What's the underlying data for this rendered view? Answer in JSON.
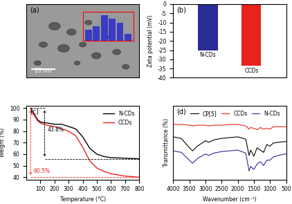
{
  "chart_data": [
    {
      "type": "image",
      "title": "(a)",
      "scale_bar": "20 nm",
      "inset": {
        "type": "bar",
        "values": [
          3,
          4,
          7,
          6,
          5,
          2
        ],
        "color": "#3b3bc4",
        "ylim": [
          0,
          8
        ],
        "tick_labels": false
      }
    },
    {
      "type": "bar",
      "title": "(b)",
      "categories": [
        "N-CDs",
        "CCDs"
      ],
      "values": [
        -25,
        -33.5
      ],
      "colors": [
        "#2b2b96",
        "#e8231c"
      ],
      "y_label": "Zeta potential (mV)",
      "ylim": [
        -40,
        0
      ],
      "yticks": [
        0,
        -5,
        -10,
        -15,
        -20,
        -25,
        -30,
        -35,
        -40
      ]
    },
    {
      "type": "line",
      "title": "(c)",
      "x_label": "Temperature (°C)",
      "y_label": "Weight (%)",
      "x": [
        30,
        50,
        80,
        100,
        150,
        200,
        250,
        300,
        350,
        400,
        450,
        500,
        550,
        600,
        700,
        800
      ],
      "series": [
        {
          "name": "N-CDs",
          "color": "#000000",
          "values": [
            100,
            96,
            90,
            88,
            87,
            86,
            86,
            84,
            82,
            75,
            65,
            60,
            58,
            57,
            56.5,
            56
          ]
        },
        {
          "name": "CCDs",
          "color": "#e8231c",
          "values": [
            100,
            95,
            89,
            87,
            85,
            84,
            82,
            80,
            76,
            66,
            54,
            48,
            45,
            43,
            41,
            40
          ]
        }
      ],
      "xlim": [
        0,
        800
      ],
      "xticks": [
        100,
        200,
        300,
        400,
        500,
        600,
        700,
        800
      ],
      "ylim": [
        38,
        102
      ],
      "yticks": [
        40,
        50,
        60,
        70,
        80,
        90,
        100
      ],
      "legend": "upper right",
      "annotations": [
        "43.8%",
        "60.5%"
      ]
    },
    {
      "type": "line",
      "title": "(d)",
      "x_label": "Wavenumber (cm⁻¹)",
      "y_label": "Transmittance (%)",
      "x": [
        4000,
        3750,
        3500,
        3400,
        3250,
        3000,
        2900,
        2750,
        2500,
        2250,
        2000,
        1750,
        1650,
        1600,
        1500,
        1400,
        1300,
        1200,
        1100,
        1000,
        900,
        750,
        500
      ],
      "series": [
        {
          "name": "CP[5]",
          "color": "#000000",
          "values": [
            7.0,
            6.8,
            5.6,
            5.2,
            5.8,
            6.5,
            6.3,
            6.6,
            6.8,
            6.9,
            7.0,
            6.7,
            4.6,
            5.3,
            4.5,
            5.6,
            5.3,
            5.0,
            6.0,
            5.8,
            6.2,
            6.3,
            6.4
          ]
        },
        {
          "name": "CCDs",
          "color": "#e8231c",
          "values": [
            8.6,
            8.6,
            8.5,
            8.4,
            8.5,
            8.5,
            8.4,
            8.5,
            8.5,
            8.6,
            8.6,
            8.4,
            8.0,
            8.2,
            8.1,
            7.9,
            8.2,
            8.0,
            8.1,
            8.0,
            8.3,
            8.3,
            8.3
          ]
        },
        {
          "name": "N-CDs",
          "color": "#2b2b96",
          "values": [
            5.2,
            5.0,
            4.0,
            3.6,
            4.2,
            4.8,
            4.6,
            4.9,
            5.1,
            5.2,
            5.3,
            4.9,
            2.6,
            3.2,
            2.8,
            3.5,
            3.8,
            3.3,
            4.0,
            4.0,
            4.4,
            4.6,
            4.8
          ]
        }
      ],
      "xlim": [
        4000,
        500
      ],
      "xticks": [
        4000,
        3500,
        3000,
        2500,
        2000,
        1500,
        1000,
        500
      ],
      "ylim": [
        1.5,
        11
      ],
      "tick_labels": "x",
      "legend": "upper center"
    }
  ]
}
